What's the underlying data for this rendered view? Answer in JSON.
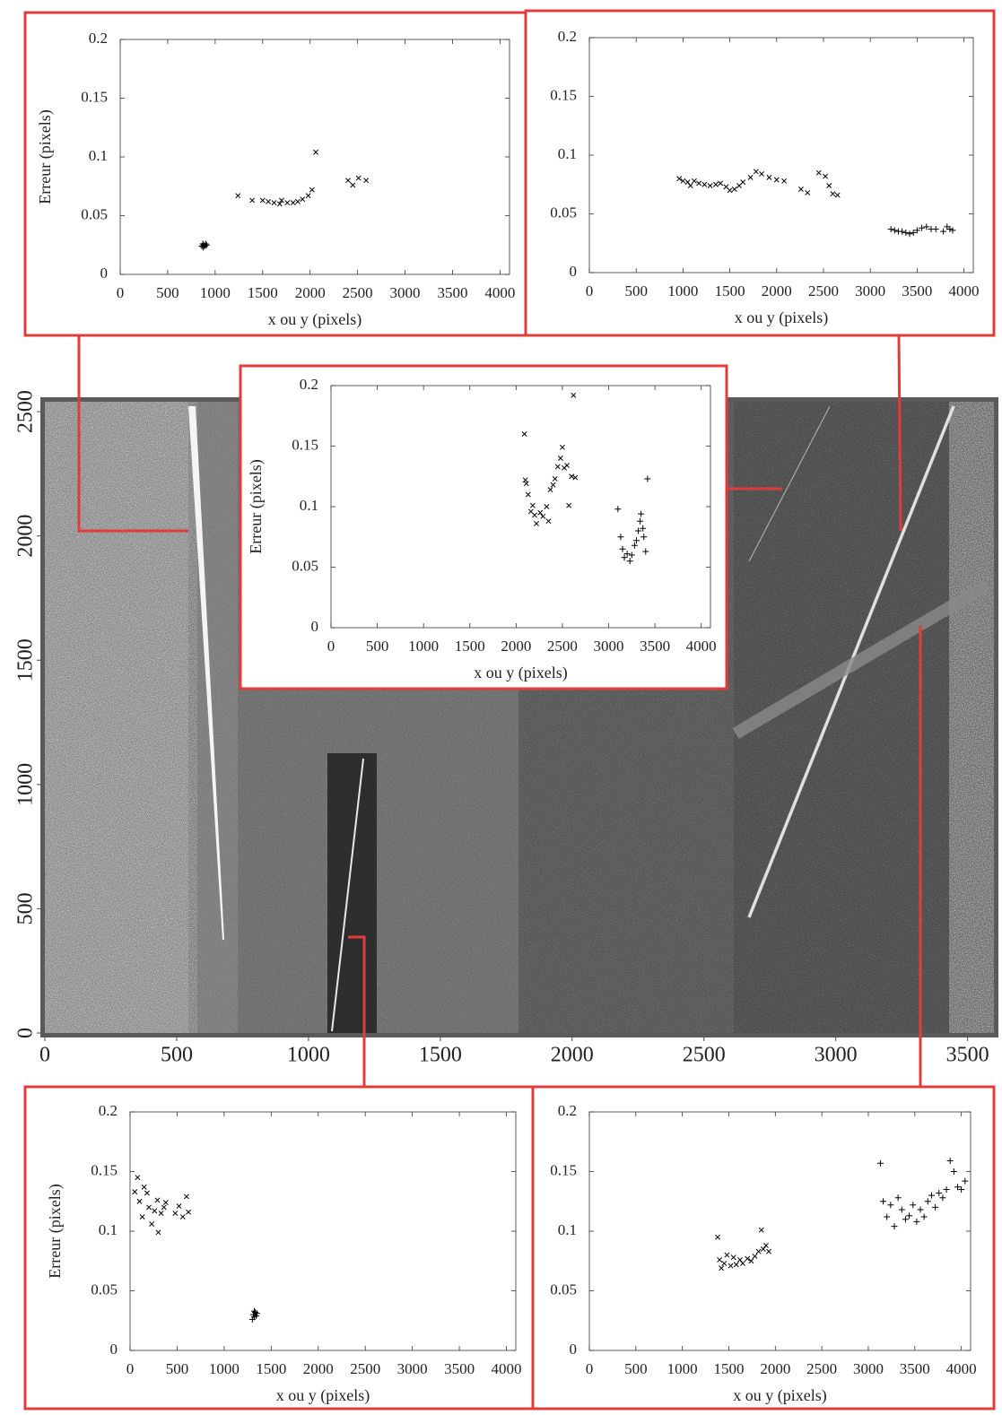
{
  "chart_data": [
    {
      "type": "image",
      "xlim": [
        0,
        3600
      ],
      "ylim": [
        0,
        2540
      ],
      "xticks": [
        0,
        500,
        1000,
        1500,
        2000,
        2500,
        3000,
        3500
      ],
      "yticks": [
        0,
        500,
        1000,
        1500,
        2000,
        2500
      ]
    },
    {
      "type": "scatter",
      "ylabel": "Erreur (pixels)",
      "xlabel": "x ou y (pixels)",
      "xlim": [
        0,
        4100
      ],
      "ylim": [
        0,
        0.2
      ],
      "xticks": [
        0,
        500,
        1000,
        1500,
        2000,
        2500,
        3000,
        3500,
        4000
      ],
      "yticks": [
        0,
        0.05,
        0.1,
        0.15,
        0.2
      ],
      "series": [
        {
          "marker": "x",
          "color": "#000000",
          "x": [
            1240,
            1390,
            1500,
            1560,
            1620,
            1680,
            1700,
            1760,
            1820,
            1870,
            1920,
            1980,
            2020,
            2060,
            2400,
            2450,
            2510,
            2590
          ],
          "values": [
            0.067,
            0.063,
            0.063,
            0.062,
            0.061,
            0.06,
            0.063,
            0.061,
            0.061,
            0.062,
            0.064,
            0.067,
            0.072,
            0.104,
            0.08,
            0.076,
            0.082,
            0.08
          ]
        },
        {
          "marker": "+",
          "color": "#000000",
          "x": [
            860,
            870,
            880,
            890,
            900,
            910,
            875
          ],
          "values": [
            0.024,
            0.026,
            0.025,
            0.024,
            0.026,
            0.025,
            0.023
          ]
        }
      ]
    },
    {
      "type": "scatter",
      "xlabel": "x ou y (pixels)",
      "xlim": [
        0,
        4100
      ],
      "ylim": [
        0,
        0.2
      ],
      "xticks": [
        0,
        500,
        1000,
        1500,
        2000,
        2500,
        3000,
        3500,
        4000
      ],
      "yticks": [
        0,
        0.05,
        0.1,
        0.15,
        0.2
      ],
      "series": [
        {
          "marker": "x",
          "color": "#000000",
          "x": [
            960,
            1000,
            1050,
            1080,
            1120,
            1170,
            1230,
            1290,
            1350,
            1400,
            1460,
            1500,
            1550,
            1600,
            1640,
            1720,
            1780,
            1840,
            1920,
            2000,
            2080,
            2260,
            2330,
            2450,
            2520,
            2560,
            2600,
            2650
          ],
          "values": [
            0.08,
            0.078,
            0.077,
            0.074,
            0.078,
            0.076,
            0.075,
            0.074,
            0.075,
            0.076,
            0.073,
            0.07,
            0.071,
            0.074,
            0.077,
            0.081,
            0.086,
            0.084,
            0.081,
            0.079,
            0.078,
            0.071,
            0.068,
            0.085,
            0.082,
            0.074,
            0.067,
            0.066
          ]
        },
        {
          "marker": "+",
          "color": "#000000",
          "x": [
            3220,
            3260,
            3300,
            3340,
            3380,
            3420,
            3460,
            3500,
            3550,
            3600,
            3650,
            3700,
            3780,
            3820,
            3850,
            3880
          ],
          "values": [
            0.037,
            0.036,
            0.035,
            0.035,
            0.034,
            0.033,
            0.034,
            0.036,
            0.038,
            0.039,
            0.037,
            0.037,
            0.035,
            0.039,
            0.037,
            0.036
          ]
        }
      ]
    },
    {
      "type": "scatter",
      "ylabel": "Erreur (pixels)",
      "xlabel": "x ou y (pixels)",
      "xlim": [
        0,
        4100
      ],
      "ylim": [
        0,
        0.2
      ],
      "xticks": [
        0,
        500,
        1000,
        1500,
        2000,
        2500,
        3000,
        3500,
        4000
      ],
      "yticks": [
        0,
        0.05,
        0.1,
        0.15,
        0.2
      ],
      "series": [
        {
          "marker": "x",
          "color": "#000000",
          "x": [
            2090,
            2100,
            2110,
            2130,
            2160,
            2180,
            2200,
            2220,
            2260,
            2290,
            2330,
            2350,
            2370,
            2400,
            2420,
            2450,
            2480,
            2500,
            2520,
            2550,
            2570,
            2600,
            2620,
            2640
          ],
          "values": [
            0.16,
            0.122,
            0.119,
            0.11,
            0.096,
            0.101,
            0.093,
            0.086,
            0.095,
            0.092,
            0.1,
            0.088,
            0.114,
            0.118,
            0.123,
            0.133,
            0.14,
            0.149,
            0.132,
            0.134,
            0.101,
            0.125,
            0.192,
            0.124
          ]
        },
        {
          "marker": "+",
          "color": "#000000",
          "x": [
            3100,
            3130,
            3150,
            3170,
            3200,
            3230,
            3250,
            3280,
            3300,
            3320,
            3340,
            3350,
            3370,
            3380,
            3400,
            3420
          ],
          "values": [
            0.098,
            0.075,
            0.065,
            0.058,
            0.061,
            0.055,
            0.06,
            0.068,
            0.072,
            0.08,
            0.088,
            0.094,
            0.082,
            0.075,
            0.063,
            0.123
          ]
        }
      ]
    },
    {
      "type": "scatter",
      "ylabel": "Erreur (pixels)",
      "xlabel": "x ou y (pixels)",
      "xlim": [
        0,
        4100
      ],
      "ylim": [
        0,
        0.2
      ],
      "xticks": [
        0,
        500,
        1000,
        1500,
        2000,
        2500,
        3000,
        3500,
        4000
      ],
      "yticks": [
        0,
        0.05,
        0.1,
        0.15,
        0.2
      ],
      "series": [
        {
          "marker": "x",
          "color": "#000000",
          "x": [
            50,
            80,
            100,
            130,
            150,
            180,
            200,
            230,
            260,
            290,
            300,
            330,
            360,
            380,
            480,
            520,
            560,
            600,
            620
          ],
          "values": [
            0.133,
            0.145,
            0.125,
            0.112,
            0.137,
            0.132,
            0.12,
            0.106,
            0.117,
            0.126,
            0.099,
            0.115,
            0.12,
            0.124,
            0.115,
            0.121,
            0.112,
            0.129,
            0.116
          ]
        },
        {
          "marker": "+",
          "color": "#000000",
          "x": [
            1300,
            1310,
            1320,
            1330,
            1340,
            1350,
            1320
          ],
          "values": [
            0.026,
            0.03,
            0.028,
            0.032,
            0.029,
            0.031,
            0.033
          ]
        }
      ]
    },
    {
      "type": "scatter",
      "xlabel": "x ou y (pixels)",
      "xlim": [
        0,
        4100
      ],
      "ylim": [
        0,
        0.2
      ],
      "xticks": [
        0,
        500,
        1000,
        1500,
        2000,
        2500,
        3000,
        3500,
        4000
      ],
      "yticks": [
        0,
        0.05,
        0.1,
        0.15,
        0.2
      ],
      "series": [
        {
          "marker": "x",
          "color": "#000000",
          "x": [
            1380,
            1400,
            1420,
            1450,
            1480,
            1520,
            1550,
            1580,
            1620,
            1650,
            1700,
            1740,
            1780,
            1820,
            1850,
            1870,
            1900,
            1930
          ],
          "values": [
            0.095,
            0.076,
            0.069,
            0.073,
            0.08,
            0.071,
            0.078,
            0.072,
            0.076,
            0.073,
            0.077,
            0.075,
            0.079,
            0.083,
            0.101,
            0.085,
            0.088,
            0.083
          ]
        },
        {
          "marker": "+",
          "color": "#000000",
          "x": [
            3130,
            3160,
            3200,
            3240,
            3280,
            3320,
            3360,
            3400,
            3440,
            3480,
            3520,
            3560,
            3600,
            3640,
            3680,
            3720,
            3760,
            3800,
            3840,
            3880,
            3920,
            3960,
            4000,
            4040
          ],
          "values": [
            0.157,
            0.125,
            0.112,
            0.122,
            0.104,
            0.128,
            0.118,
            0.11,
            0.113,
            0.122,
            0.108,
            0.118,
            0.112,
            0.125,
            0.13,
            0.12,
            0.132,
            0.128,
            0.135,
            0.159,
            0.15,
            0.137,
            0.135,
            0.142
          ]
        }
      ]
    }
  ]
}
